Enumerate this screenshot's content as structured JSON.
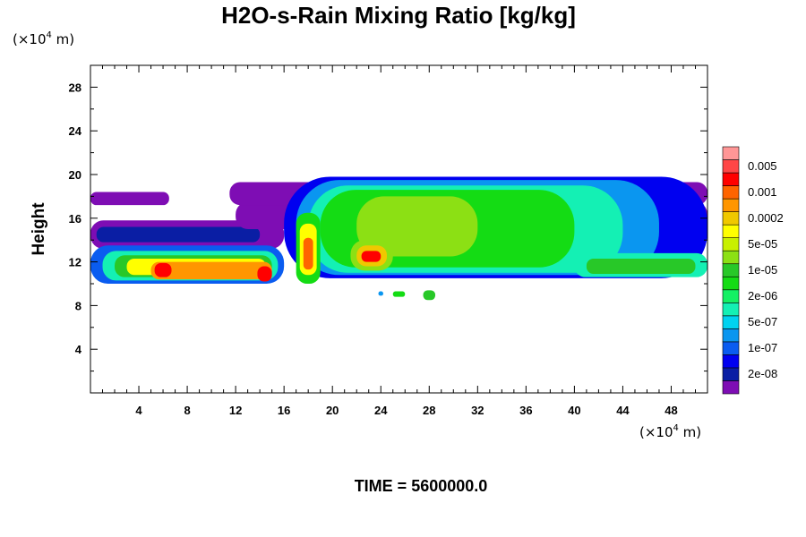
{
  "chart_data": {
    "type": "heatmap",
    "title": "H2O-s-Rain Mixing Ratio [kg/kg]",
    "ylabel": "Height",
    "xlabel": "",
    "x_unit": {
      "prefix": "(×10",
      "exponent": "4",
      "suffix": " m)"
    },
    "y_unit": {
      "prefix": "(×10",
      "exponent": "4",
      "suffix": " m)"
    },
    "xlim": [
      0,
      51
    ],
    "ylim": [
      0,
      30
    ],
    "x_ticks": [
      4,
      8,
      12,
      16,
      20,
      24,
      28,
      32,
      36,
      40,
      44,
      48
    ],
    "y_ticks": [
      4,
      8,
      12,
      16,
      20,
      24,
      28
    ],
    "grid": false,
    "legend_position": "right",
    "levels": [
      {
        "label": "",
        "color": "#7e0db4"
      },
      {
        "label": "2e-08",
        "color": "#0a1ea4"
      },
      {
        "label": "",
        "color": "#0000f0"
      },
      {
        "label": "1e-07",
        "color": "#0a5cf0"
      },
      {
        "label": "",
        "color": "#0a96f0"
      },
      {
        "label": "5e-07",
        "color": "#00d2f0"
      },
      {
        "label": "",
        "color": "#14f0b4"
      },
      {
        "label": "2e-06",
        "color": "#14f064"
      },
      {
        "label": "",
        "color": "#14dc14"
      },
      {
        "label": "1e-05",
        "color": "#28c828"
      },
      {
        "label": "",
        "color": "#8ce014"
      },
      {
        "label": "5e-05",
        "color": "#c8f000"
      },
      {
        "label": "",
        "color": "#ffff00"
      },
      {
        "label": "0.0002",
        "color": "#f0c800"
      },
      {
        "label": "",
        "color": "#ff9600"
      },
      {
        "label": "0.001",
        "color": "#ff6400"
      },
      {
        "label": "",
        "color": "#ff0000"
      },
      {
        "label": "0.005",
        "color": "#ff4646"
      },
      {
        "label": "",
        "color": "#ff9696"
      }
    ],
    "regions": [
      {
        "x": [
          0,
          6.5
        ],
        "y": [
          17.2,
          18.4
        ],
        "level": 0
      },
      {
        "x": [
          0,
          16
        ],
        "y": [
          13.2,
          15.8
        ],
        "level": 0
      },
      {
        "x": [
          0.5,
          14
        ],
        "y": [
          13.8,
          15.2
        ],
        "level": 1
      },
      {
        "x": [
          0,
          16
        ],
        "y": [
          10.0,
          13.5
        ],
        "level": 3
      },
      {
        "x": [
          1,
          15.5
        ],
        "y": [
          10.3,
          13.0
        ],
        "level": 6
      },
      {
        "x": [
          2,
          15
        ],
        "y": [
          10.6,
          12.6
        ],
        "level": 9
      },
      {
        "x": [
          3,
          14.5
        ],
        "y": [
          10.8,
          12.3
        ],
        "level": 12
      },
      {
        "x": [
          5,
          15
        ],
        "y": [
          10.4,
          12.0
        ],
        "level": 14
      },
      {
        "x": [
          5.3,
          6.7
        ],
        "y": [
          10.6,
          11.9
        ],
        "level": 16
      },
      {
        "x": [
          13.8,
          15.0
        ],
        "y": [
          10.2,
          11.6
        ],
        "level": 16
      },
      {
        "x": [
          12,
          51
        ],
        "y": [
          15.0,
          17.5
        ],
        "level": 0
      },
      {
        "x": [
          11.5,
          51
        ],
        "y": [
          17.2,
          19.3
        ],
        "level": 0
      },
      {
        "x": [
          16,
          51
        ],
        "y": [
          10.5,
          19.8
        ],
        "level": 2
      },
      {
        "x": [
          17,
          47
        ],
        "y": [
          10.8,
          19.5
        ],
        "level": 4
      },
      {
        "x": [
          18,
          44
        ],
        "y": [
          11.0,
          19.0
        ],
        "level": 6
      },
      {
        "x": [
          19,
          40
        ],
        "y": [
          11.5,
          18.6
        ],
        "level": 8
      },
      {
        "x": [
          40,
          51
        ],
        "y": [
          10.6,
          12.8
        ],
        "level": 6
      },
      {
        "x": [
          41,
          50
        ],
        "y": [
          10.9,
          12.3
        ],
        "level": 9
      },
      {
        "x": [
          22,
          32
        ],
        "y": [
          12.5,
          18.0
        ],
        "level": 10
      },
      {
        "x": [
          17,
          19
        ],
        "y": [
          10.0,
          16.5
        ],
        "level": 8
      },
      {
        "x": [
          17.3,
          18.7
        ],
        "y": [
          10.8,
          15.5
        ],
        "level": 12
      },
      {
        "x": [
          17.6,
          18.4
        ],
        "y": [
          11.3,
          14.2
        ],
        "level": 15
      },
      {
        "x": [
          21.5,
          25
        ],
        "y": [
          11.2,
          14.0
        ],
        "level": 10
      },
      {
        "x": [
          22,
          24.5
        ],
        "y": [
          11.6,
          13.5
        ],
        "level": 13
      },
      {
        "x": [
          22.4,
          24
        ],
        "y": [
          12.0,
          13.0
        ],
        "level": 16
      },
      {
        "x": [
          23.8,
          24.2
        ],
        "y": [
          8.9,
          9.3
        ],
        "level": 4
      },
      {
        "x": [
          25,
          26
        ],
        "y": [
          8.8,
          9.3
        ],
        "level": 8
      },
      {
        "x": [
          27.5,
          28.5
        ],
        "y": [
          8.5,
          9.4
        ],
        "level": 9
      }
    ]
  },
  "labels": {
    "footer": "TIME = 5600000.0"
  }
}
